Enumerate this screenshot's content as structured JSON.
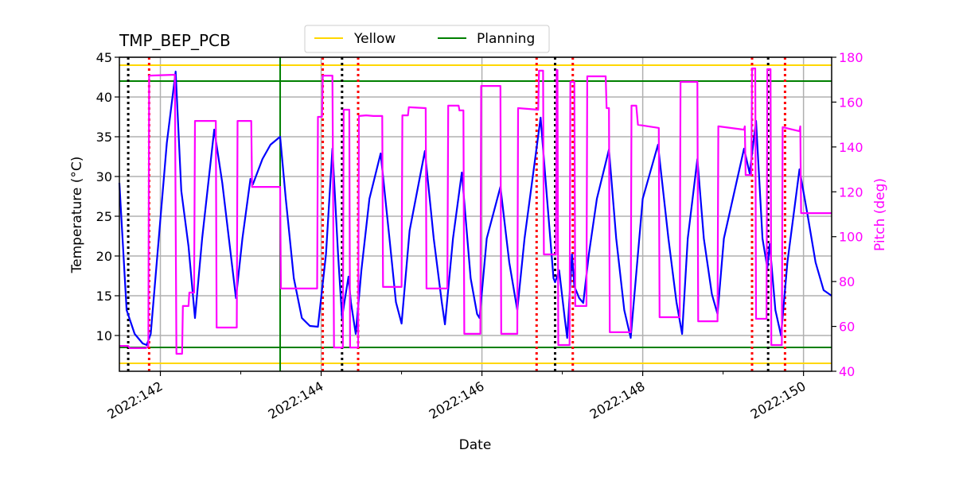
{
  "chart_data": {
    "type": "line",
    "title": "TMP_BEP_PCB",
    "xlabel": "Date",
    "ylabel": "Temperature ($^\\circ$C)",
    "ylabel_display": "Temperature (°C)",
    "y2label": "Pitch (deg)",
    "xlim": [
      141.49,
      150.35
    ],
    "ylim": [
      5.5,
      45
    ],
    "y2lim": [
      40,
      180
    ],
    "grid": true,
    "legend_placement": "top-center, above axes",
    "x_ticks": [
      {
        "v": 142,
        "label": "2022:142"
      },
      {
        "v": 144,
        "label": "2022:144"
      },
      {
        "v": 146,
        "label": "2022:146"
      },
      {
        "v": 148,
        "label": "2022:148"
      },
      {
        "v": 150,
        "label": "2022:150"
      }
    ],
    "x_minor_ticks": [
      143,
      145,
      147,
      149
    ],
    "y_ticks": [
      10,
      15,
      20,
      25,
      30,
      35,
      40,
      45
    ],
    "y2_ticks": [
      40,
      60,
      80,
      100,
      120,
      140,
      160,
      180
    ],
    "colors": {
      "temp": "#0000ff",
      "pitch": "#ff00ff",
      "yellow": "#ffd700",
      "planning": "#008000",
      "red_events": "#ff0000",
      "black_events": "#000000"
    },
    "legend": [
      {
        "label": "Yellow",
        "color": "#ffd700"
      },
      {
        "label": "Planning",
        "color": "#008000"
      }
    ],
    "hlines": [
      {
        "name": "yellow-hi",
        "y": 44,
        "color": "#ffd700"
      },
      {
        "name": "yellow-lo",
        "y": 6.5,
        "color": "#ffd700"
      },
      {
        "name": "planning-hi",
        "y": 42,
        "color": "#008000"
      },
      {
        "name": "planning-lo",
        "y": 8.5,
        "color": "#008000"
      }
    ],
    "vline_planning": 143.49,
    "black_dotted_events": [
      141.6,
      144.26,
      146.91,
      149.56
    ],
    "red_dotted_events": [
      141.86,
      144.02,
      144.46,
      146.68,
      147.13,
      149.36,
      149.77
    ],
    "series": [
      {
        "name": "Temperature",
        "axis": "left",
        "color": "#0000ff",
        "x": [
          141.49,
          141.58,
          141.68,
          141.78,
          141.83,
          141.88,
          141.98,
          142.08,
          142.19,
          142.26,
          142.35,
          142.43,
          142.52,
          142.67,
          142.77,
          142.94,
          143.02,
          143.12,
          143.15,
          143.27,
          143.37,
          143.49,
          143.56,
          143.66,
          143.76,
          143.86,
          143.96,
          144.06,
          144.14,
          144.21,
          144.26,
          144.29,
          144.34,
          144.37,
          144.43,
          144.5,
          144.6,
          144.74,
          144.85,
          144.93,
          145.0,
          145.1,
          145.29,
          145.4,
          145.5,
          145.54,
          145.64,
          145.75,
          145.86,
          145.94,
          145.97,
          146.06,
          146.23,
          146.34,
          146.44,
          146.53,
          146.73,
          146.81,
          146.89,
          146.91,
          146.96,
          147.03,
          147.06,
          147.12,
          147.15,
          147.21,
          147.26,
          147.33,
          147.43,
          147.58,
          147.67,
          147.77,
          147.85,
          148.0,
          148.19,
          148.32,
          148.42,
          148.49,
          148.56,
          148.68,
          148.76,
          148.86,
          148.93,
          149.01,
          149.26,
          149.33,
          149.41,
          149.49,
          149.55,
          149.58,
          149.65,
          149.72,
          149.8,
          149.95,
          150.05,
          150.15,
          150.25,
          150.35
        ],
        "y": [
          29.2,
          13.2,
          10.2,
          9.0,
          8.8,
          10.2,
          22.2,
          34.2,
          43.2,
          28.2,
          21.2,
          12.2,
          22.2,
          35.9,
          29.2,
          14.7,
          22.2,
          29.7,
          29.0,
          32.2,
          34.0,
          35.0,
          27.2,
          17.2,
          12.2,
          11.2,
          11.1,
          20.2,
          33.5,
          20.2,
          12.2,
          14.2,
          17.4,
          14.2,
          10.2,
          18.2,
          27.2,
          32.9,
          22.2,
          14.2,
          11.5,
          23.2,
          33.2,
          22.2,
          14.2,
          11.4,
          22.2,
          30.5,
          17.2,
          12.7,
          12.2,
          22.2,
          28.7,
          19.2,
          13.2,
          22.2,
          37.4,
          27.2,
          17.2,
          16.7,
          18.2,
          12.2,
          9.7,
          20.2,
          16.2,
          14.7,
          14.1,
          20.2,
          27.2,
          33.4,
          22.2,
          13.2,
          9.7,
          27.2,
          34.0,
          22.2,
          14.2,
          10.2,
          22.2,
          32.2,
          22.2,
          15.2,
          12.7,
          22.2,
          33.5,
          30.4,
          37.0,
          22.2,
          18.5,
          21.5,
          13.2,
          10.0,
          19.2,
          30.9,
          25.2,
          19.2,
          15.7,
          15.0
        ]
      },
      {
        "name": "Pitch",
        "axis": "right",
        "color": "#ff00ff",
        "x": [
          141.49,
          141.6,
          141.62,
          141.82,
          141.85,
          141.86,
          142.18,
          142.2,
          142.27,
          142.28,
          142.35,
          142.36,
          142.42,
          142.43,
          142.69,
          142.7,
          142.95,
          142.96,
          143.13,
          143.14,
          143.49,
          143.5,
          143.95,
          143.96,
          144.01,
          144.02,
          144.14,
          144.16,
          144.27,
          144.28,
          144.35,
          144.36,
          144.46,
          144.47,
          144.56,
          144.65,
          144.76,
          144.77,
          145.0,
          145.01,
          145.08,
          145.09,
          145.3,
          145.31,
          145.57,
          145.58,
          145.71,
          145.72,
          145.77,
          145.78,
          145.98,
          145.99,
          146.23,
          146.24,
          146.44,
          146.45,
          146.7,
          146.71,
          146.76,
          146.77,
          146.92,
          146.93,
          146.94,
          146.95,
          147.09,
          147.1,
          147.15,
          147.16,
          147.3,
          147.31,
          147.54,
          147.55,
          147.58,
          147.59,
          147.85,
          147.86,
          147.92,
          147.94,
          148.2,
          148.21,
          148.46,
          148.47,
          148.68,
          148.69,
          148.93,
          148.94,
          149.26,
          149.27,
          149.28,
          149.35,
          149.36,
          149.4,
          149.41,
          149.54,
          149.55,
          149.59,
          149.6,
          149.73,
          149.74,
          149.95,
          149.96,
          149.97,
          150.35
        ],
        "y": [
          51.3,
          51.3,
          50.3,
          50.3,
          51.3,
          171.8,
          172.2,
          47.8,
          47.8,
          69.1,
          69.1,
          75.1,
          75.1,
          151.6,
          151.6,
          59.5,
          59.5,
          151.6,
          151.6,
          122.2,
          122.2,
          76.9,
          76.9,
          153.4,
          153.4,
          171.8,
          171.8,
          50.6,
          50.6,
          156.6,
          156.6,
          50.6,
          50.6,
          153.8,
          154.1,
          153.8,
          153.8,
          77.6,
          77.6,
          154.1,
          154.1,
          157.7,
          157.3,
          76.9,
          76.9,
          158.4,
          158.4,
          156.3,
          156.3,
          56.7,
          56.7,
          167.2,
          167.2,
          56.7,
          56.7,
          157.3,
          156.6,
          174.0,
          174.0,
          92.1,
          92.1,
          174.3,
          174.3,
          51.7,
          51.7,
          169.0,
          169.0,
          69.1,
          69.1,
          171.5,
          171.5,
          157.3,
          157.3,
          57.4,
          57.4,
          158.4,
          158.4,
          149.9,
          148.5,
          64.1,
          64.1,
          169.0,
          169.0,
          62.3,
          62.3,
          149.2,
          147.7,
          149.2,
          127.5,
          127.5,
          175.0,
          175.0,
          63.4,
          63.4,
          174.7,
          174.7,
          51.7,
          51.7,
          148.8,
          147.0,
          149.2,
          110.5,
          110.5
        ]
      }
    ]
  }
}
